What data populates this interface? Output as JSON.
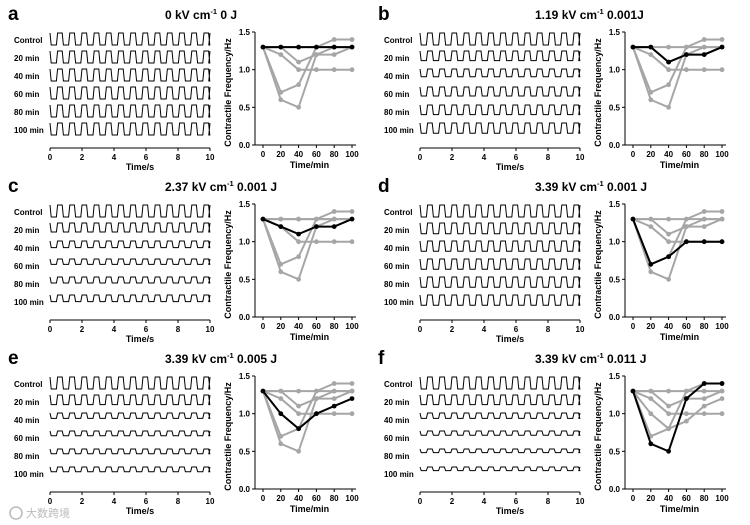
{
  "watermark": "大数跨境",
  "chart_data": [
    {
      "panel": "a",
      "title_main": "0 kV cm",
      "title_exp": "-1",
      "title_tail": " 0 J",
      "trace_xlabel": "Time/s",
      "trace_xticks": [
        "0",
        "2",
        "4",
        "6",
        "8",
        "10"
      ],
      "trace_rows": [
        "Control",
        "20 min",
        "40 min",
        "60 min",
        "80 min",
        "100 min"
      ],
      "trace_amplitude": [
        1,
        1,
        1,
        1,
        1,
        1
      ],
      "type": "line",
      "xlabel": "Time/min",
      "ylabel": "Contractile Frequency/Hz",
      "x": [
        0,
        20,
        40,
        60,
        80,
        100
      ],
      "x_ticklabels": [
        "0",
        "20",
        "40",
        "60",
        "80",
        "100"
      ],
      "y_ticklabels": [
        "0.0",
        "0.5",
        "1.0",
        "1.5"
      ],
      "ylim": [
        0,
        1.5
      ],
      "highlight": {
        "name": "highlighted",
        "color": "#000000",
        "values": [
          1.3,
          1.3,
          1.3,
          1.3,
          1.3,
          1.3
        ]
      },
      "background_series_color": "#a6a6a6",
      "series": [
        {
          "name": "ref-1",
          "values": [
            1.3,
            0.7,
            0.8,
            1.3,
            1.4,
            1.4
          ]
        },
        {
          "name": "ref-2",
          "values": [
            1.3,
            0.6,
            0.5,
            1.2,
            1.3,
            1.3
          ]
        },
        {
          "name": "ref-3",
          "values": [
            1.3,
            1.2,
            1.0,
            1.0,
            1.0,
            1.0
          ]
        },
        {
          "name": "ref-4",
          "values": [
            1.3,
            1.3,
            1.1,
            1.2,
            1.2,
            1.3
          ]
        },
        {
          "name": "ref-5",
          "values": [
            1.3,
            1.3,
            1.3,
            1.3,
            1.3,
            1.3
          ]
        }
      ]
    },
    {
      "panel": "b",
      "title_main": "1.19 kV cm",
      "title_exp": "-1",
      "title_tail": " 0.001J",
      "trace_xlabel": "Time/s",
      "trace_xticks": [
        "0",
        "2",
        "4",
        "6",
        "8",
        "10"
      ],
      "trace_rows": [
        "Control",
        "20 min",
        "40 min",
        "60 min",
        "80 min",
        "100 min"
      ],
      "trace_amplitude": [
        1,
        0.8,
        0.65,
        0.75,
        0.8,
        0.85
      ],
      "type": "line",
      "xlabel": "Time/min",
      "ylabel": "Contractile Frequency/Hz",
      "x": [
        0,
        20,
        40,
        60,
        80,
        100
      ],
      "x_ticklabels": [
        "0",
        "20",
        "40",
        "60",
        "80",
        "100"
      ],
      "y_ticklabels": [
        "0.0",
        "0.5",
        "1.0",
        "1.5"
      ],
      "ylim": [
        0,
        1.5
      ],
      "highlight": {
        "name": "highlighted",
        "color": "#000000",
        "values": [
          1.3,
          1.3,
          1.1,
          1.2,
          1.2,
          1.3
        ]
      },
      "background_series_color": "#a6a6a6",
      "series": [
        {
          "name": "ref-1",
          "values": [
            1.3,
            0.7,
            0.8,
            1.3,
            1.4,
            1.4
          ]
        },
        {
          "name": "ref-2",
          "values": [
            1.3,
            0.6,
            0.5,
            1.2,
            1.3,
            1.3
          ]
        },
        {
          "name": "ref-3",
          "values": [
            1.3,
            1.2,
            1.0,
            1.0,
            1.0,
            1.0
          ]
        },
        {
          "name": "ref-4",
          "values": [
            1.3,
            1.3,
            1.1,
            1.2,
            1.2,
            1.3
          ]
        },
        {
          "name": "ref-5",
          "values": [
            1.3,
            1.3,
            1.3,
            1.3,
            1.3,
            1.3
          ]
        }
      ]
    },
    {
      "panel": "c",
      "title_main": "2.37 kV cm",
      "title_exp": "-1",
      "title_tail": " 0.001 J",
      "trace_xlabel": "Time/s",
      "trace_xticks": [
        "0",
        "2",
        "4",
        "6",
        "8",
        "10"
      ],
      "trace_rows": [
        "Control",
        "20 min",
        "40 min",
        "60 min",
        "80 min",
        "100 min"
      ],
      "trace_amplitude": [
        1,
        0.75,
        0.55,
        0.45,
        0.5,
        0.55
      ],
      "type": "line",
      "xlabel": "Time/min",
      "ylabel": "Contractile Frequency/Hz",
      "x": [
        0,
        20,
        40,
        60,
        80,
        100
      ],
      "x_ticklabels": [
        "0",
        "20",
        "40",
        "60",
        "80",
        "100"
      ],
      "y_ticklabels": [
        "0.0",
        "0.5",
        "1.0",
        "1.5"
      ],
      "ylim": [
        0,
        1.5
      ],
      "highlight": {
        "name": "highlighted",
        "color": "#000000",
        "values": [
          1.3,
          1.2,
          1.1,
          1.2,
          1.2,
          1.3
        ]
      },
      "background_series_color": "#a6a6a6",
      "series": [
        {
          "name": "ref-1",
          "values": [
            1.3,
            0.7,
            0.8,
            1.3,
            1.4,
            1.4
          ]
        },
        {
          "name": "ref-2",
          "values": [
            1.3,
            0.6,
            0.5,
            1.2,
            1.3,
            1.3
          ]
        },
        {
          "name": "ref-3",
          "values": [
            1.3,
            1.2,
            1.0,
            1.0,
            1.0,
            1.0
          ]
        },
        {
          "name": "ref-4",
          "values": [
            1.3,
            1.3,
            1.3,
            1.3,
            1.3,
            1.3
          ]
        },
        {
          "name": "ref-5",
          "values": [
            1.3,
            1.3,
            1.3,
            1.3,
            1.3,
            1.3
          ]
        }
      ]
    },
    {
      "panel": "d",
      "title_main": "3.39 kV cm",
      "title_exp": "-1",
      "title_tail": " 0.001 J",
      "trace_xlabel": "Time/s",
      "trace_xticks": [
        "0",
        "2",
        "4",
        "6",
        "8",
        "10"
      ],
      "trace_rows": [
        "Control",
        "20 min",
        "40 min",
        "60 min",
        "80 min",
        "100 min"
      ],
      "trace_amplitude": [
        1,
        0.9,
        0.85,
        0.85,
        0.85,
        0.85
      ],
      "type": "line",
      "xlabel": "Time/min",
      "ylabel": "Contractile Frequency/Hz",
      "x": [
        0,
        20,
        40,
        60,
        80,
        100
      ],
      "x_ticklabels": [
        "0",
        "20",
        "40",
        "60",
        "80",
        "100"
      ],
      "y_ticklabels": [
        "0.0",
        "0.5",
        "1.0",
        "1.5"
      ],
      "ylim": [
        0,
        1.5
      ],
      "highlight": {
        "name": "highlighted",
        "color": "#000000",
        "values": [
          1.3,
          0.7,
          0.8,
          1.0,
          1.0,
          1.0
        ]
      },
      "background_series_color": "#a6a6a6",
      "series": [
        {
          "name": "ref-1",
          "values": [
            1.3,
            0.7,
            0.8,
            1.3,
            1.4,
            1.4
          ]
        },
        {
          "name": "ref-2",
          "values": [
            1.3,
            0.6,
            0.5,
            1.2,
            1.3,
            1.3
          ]
        },
        {
          "name": "ref-3",
          "values": [
            1.3,
            1.2,
            1.0,
            1.0,
            1.0,
            1.0
          ]
        },
        {
          "name": "ref-4",
          "values": [
            1.3,
            1.3,
            1.1,
            1.2,
            1.2,
            1.3
          ]
        },
        {
          "name": "ref-5",
          "values": [
            1.3,
            1.3,
            1.3,
            1.3,
            1.3,
            1.3
          ]
        }
      ]
    },
    {
      "panel": "e",
      "title_main": "3.39 kV cm",
      "title_exp": "-1",
      "title_tail": " 0.005 J",
      "trace_xlabel": "Time/s",
      "trace_xticks": [
        "0",
        "2",
        "4",
        "6",
        "8",
        "10"
      ],
      "trace_rows": [
        "Control",
        "20 min",
        "40 min",
        "60 min",
        "80 min",
        "100 min"
      ],
      "trace_amplitude": [
        1,
        0.8,
        0.45,
        0.4,
        0.4,
        0.4
      ],
      "type": "line",
      "xlabel": "Time/min",
      "ylabel": "Contractile Frequency/Hz",
      "x": [
        0,
        20,
        40,
        60,
        80,
        100
      ],
      "x_ticklabels": [
        "0",
        "20",
        "40",
        "60",
        "80",
        "100"
      ],
      "y_ticklabels": [
        "0.0",
        "0.5",
        "1.0",
        "1.5"
      ],
      "ylim": [
        0,
        1.5
      ],
      "highlight": {
        "name": "highlighted",
        "color": "#000000",
        "values": [
          1.3,
          1.0,
          0.8,
          1.0,
          1.1,
          1.2
        ]
      },
      "background_series_color": "#a6a6a6",
      "series": [
        {
          "name": "ref-1",
          "values": [
            1.3,
            0.7,
            0.8,
            1.3,
            1.4,
            1.4
          ]
        },
        {
          "name": "ref-2",
          "values": [
            1.3,
            0.6,
            0.5,
            1.2,
            1.3,
            1.3
          ]
        },
        {
          "name": "ref-3",
          "values": [
            1.3,
            1.2,
            1.0,
            1.0,
            1.0,
            1.0
          ]
        },
        {
          "name": "ref-4",
          "values": [
            1.3,
            1.3,
            1.1,
            1.2,
            1.2,
            1.3
          ]
        },
        {
          "name": "ref-5",
          "values": [
            1.3,
            1.3,
            1.3,
            1.3,
            1.3,
            1.3
          ]
        }
      ]
    },
    {
      "panel": "f",
      "title_main": "3.39 kV cm",
      "title_exp": "-1",
      "title_tail": " 0.011 J",
      "trace_xlabel": "Time/s",
      "trace_xticks": [
        "0",
        "2",
        "4",
        "6",
        "8",
        "10"
      ],
      "trace_rows": [
        "Control",
        "20 min",
        "40 min",
        "60 min",
        "80 min",
        "100 min"
      ],
      "trace_amplitude": [
        1,
        0.8,
        0.45,
        0.35,
        0.3,
        0.3
      ],
      "type": "line",
      "xlabel": "Time/min",
      "ylabel": "Contractile Frequency/Hz",
      "x": [
        0,
        20,
        40,
        60,
        80,
        100
      ],
      "x_ticklabels": [
        "0",
        "20",
        "40",
        "60",
        "80",
        "100"
      ],
      "y_ticklabels": [
        "0.0",
        "0.5",
        "1.0",
        "1.5"
      ],
      "ylim": [
        0,
        1.5
      ],
      "highlight": {
        "name": "highlighted",
        "color": "#000000",
        "values": [
          1.3,
          0.6,
          0.5,
          1.2,
          1.4,
          1.4
        ]
      },
      "background_series_color": "#a6a6a6",
      "series": [
        {
          "name": "ref-1",
          "values": [
            1.3,
            0.7,
            0.8,
            1.3,
            1.4,
            1.4
          ]
        },
        {
          "name": "ref-2",
          "values": [
            1.3,
            1.0,
            0.8,
            0.9,
            1.1,
            1.2
          ]
        },
        {
          "name": "ref-3",
          "values": [
            1.3,
            1.2,
            1.0,
            1.0,
            1.0,
            1.0
          ]
        },
        {
          "name": "ref-4",
          "values": [
            1.3,
            1.3,
            1.1,
            1.2,
            1.2,
            1.3
          ]
        },
        {
          "name": "ref-5",
          "values": [
            1.3,
            1.3,
            1.3,
            1.3,
            1.3,
            1.3
          ]
        }
      ]
    }
  ]
}
